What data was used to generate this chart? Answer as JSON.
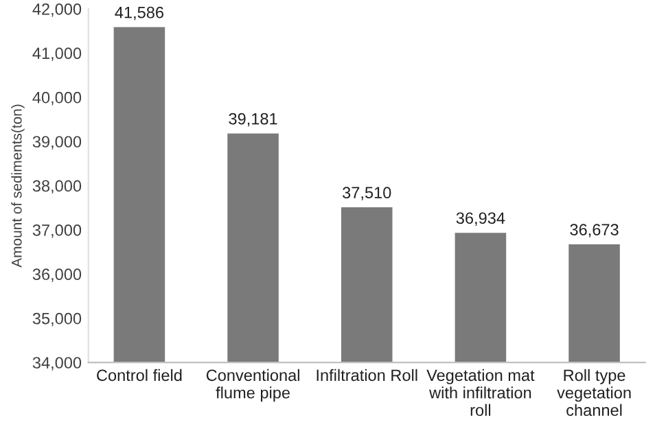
{
  "chart_data": {
    "type": "bar",
    "categories": [
      "Control field",
      "Conventional\nflume pipe",
      "Infiltration Roll",
      "Vegetation mat\nwith infiltration\nroll",
      "Roll type\nvegetation\nchannel"
    ],
    "values": [
      41586,
      39181,
      37510,
      36934,
      36673
    ],
    "value_labels": [
      "41,586",
      "39,181",
      "37,510",
      "36,934",
      "36,673"
    ],
    "color": "#7a7a7a",
    "ylabel": "Amount of sediments(ton)",
    "ylim": [
      34000,
      42000
    ],
    "yticks": [
      {
        "value": 34000,
        "label": "34,000"
      },
      {
        "value": 35000,
        "label": "35,000"
      },
      {
        "value": 36000,
        "label": "36,000"
      },
      {
        "value": 37000,
        "label": "37,000"
      },
      {
        "value": 38000,
        "label": "38,000"
      },
      {
        "value": 39000,
        "label": "39,000"
      },
      {
        "value": 40000,
        "label": "40,000"
      },
      {
        "value": 41000,
        "label": "41,000"
      },
      {
        "value": 42000,
        "label": "42,000"
      }
    ],
    "grid": false,
    "legend": false
  }
}
